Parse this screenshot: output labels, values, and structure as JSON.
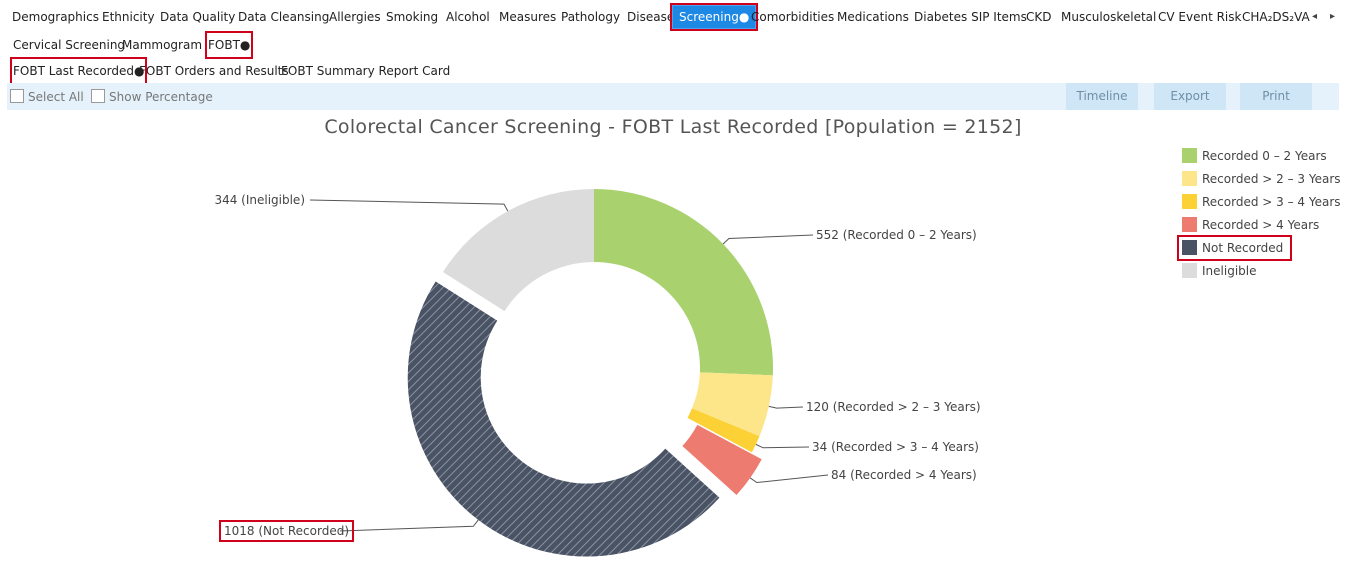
{
  "top_tabs": [
    "Demographics",
    "Ethnicity",
    "Data Quality",
    "Data Cleansing",
    "Allergies",
    "Smoking",
    "Alcohol",
    "Measures",
    "Pathology",
    "Disease",
    "Screening●",
    "Comorbidities",
    "Medications",
    "Diabetes SIP Items",
    "CKD",
    "Musculoskeletal",
    "CV Event Risk",
    "CHA₂DS₂VA"
  ],
  "nav": {
    "prev": "◂",
    "next": "▸"
  },
  "sub_tabs": [
    "Cervical Screening",
    "Mammogram",
    "FOBT●"
  ],
  "sub_tabs2": [
    "FOBT Last Recorded●",
    "FOBT Orders and Results",
    "FOBT Summary Report Card"
  ],
  "toolbar": {
    "select_all": "Select All",
    "show_percentage": "Show Percentage",
    "timeline": "Timeline",
    "export": "Export",
    "print": "Print"
  },
  "chart_data": {
    "type": "pie",
    "donut": true,
    "title": "Colorectal Cancer Screening - FOBT Last Recorded [Population = 2152]",
    "population": 2152,
    "slices": [
      {
        "name": "Recorded 0 – 2 Years",
        "value": 552,
        "label": "552 (Recorded 0 – 2 Years)",
        "color": "#a9d26f"
      },
      {
        "name": "Recorded > 2 – 3 Years",
        "value": 120,
        "label": "120 (Recorded > 2 – 3 Years)",
        "color": "#fde68a"
      },
      {
        "name": "Recorded > 3 – 4 Years",
        "value": 34,
        "label": "34 (Recorded > 3 – 4 Years)",
        "color": "#fbd135"
      },
      {
        "name": "Recorded > 4 Years",
        "value": 84,
        "label": "84 (Recorded > 4 Years)",
        "color": "#ee7b6f"
      },
      {
        "name": "Not Recorded",
        "value": 1018,
        "label": "1018 (Not Recorded)",
        "color": "#4a5363",
        "pattern": "hatched"
      },
      {
        "name": "Ineligible",
        "value": 344,
        "label": "344 (Ineligible)",
        "color": "#dcdcdc"
      }
    ],
    "legend_position": "right"
  }
}
